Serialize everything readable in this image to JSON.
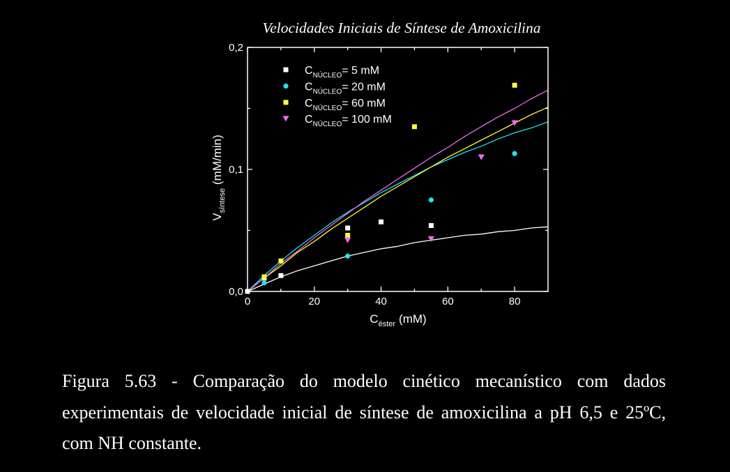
{
  "page": {
    "background_color": "#000000",
    "text_color": "#ffffff"
  },
  "caption": {
    "lines": [
      "Figura 5.63 - Comparação do modelo cinético mecanístico com dados",
      "experimentais de velocidade inicial de síntese de amoxicilina a pH 6,5 e 25ºC,",
      "com NH constante."
    ]
  },
  "chart_data": {
    "type": "scatter",
    "title": "Velocidades Iniciais de Síntese de Amoxicilina",
    "xlabel": {
      "symbol": "C",
      "sub": "éster",
      "unit": "(mM)"
    },
    "ylabel": {
      "symbol": "V",
      "sub": "síntese",
      "unit": "(mM/min)"
    },
    "xlim": [
      0,
      90
    ],
    "ylim": [
      0,
      0.2
    ],
    "xticks": [
      0,
      20,
      40,
      60,
      80
    ],
    "xtick_labels": [
      "0",
      "20",
      "40",
      "60",
      "80"
    ],
    "yticks": [
      0,
      0.1,
      0.2
    ],
    "ytick_labels": [
      "0,0",
      "0,1",
      "0,2"
    ],
    "grid": false,
    "legend_position": "top-left",
    "axes_color": "#ffffff",
    "curve_x": [
      0,
      5,
      10,
      15,
      20,
      25,
      30,
      35,
      40,
      45,
      50,
      55,
      60,
      65,
      70,
      75,
      80,
      85,
      90
    ],
    "series": [
      {
        "legend": {
          "symbol": "C",
          "sub": "NÚCLEO",
          "text": "= 5 mM"
        },
        "marker": "square",
        "color": "#ffffff",
        "x": [
          0,
          5,
          10,
          30,
          40,
          55
        ],
        "y": [
          0,
          0.011,
          0.013,
          0.052,
          0.057,
          0.054
        ],
        "curve_y": [
          0,
          0.006,
          0.012,
          0.017,
          0.021,
          0.025,
          0.029,
          0.032,
          0.035,
          0.037,
          0.04,
          0.042,
          0.044,
          0.046,
          0.047,
          0.049,
          0.05,
          0.052,
          0.053
        ]
      },
      {
        "legend": {
          "symbol": "C",
          "sub": "NÚCLEO",
          "text": "= 20 mM"
        },
        "marker": "circle",
        "color": "#1ee4f2",
        "x": [
          5,
          30,
          55,
          80
        ],
        "y": [
          0.007,
          0.029,
          0.075,
          0.113
        ],
        "curve_y": [
          0,
          0.013,
          0.025,
          0.036,
          0.046,
          0.056,
          0.065,
          0.073,
          0.081,
          0.088,
          0.095,
          0.102,
          0.108,
          0.114,
          0.119,
          0.125,
          0.13,
          0.134,
          0.139
        ]
      },
      {
        "legend": {
          "symbol": "C",
          "sub": "NÚCLEO",
          "text": "= 60 mM"
        },
        "marker": "square",
        "color": "#ffff33",
        "x": [
          5,
          10,
          30,
          50,
          80
        ],
        "y": [
          0.012,
          0.025,
          0.046,
          0.135,
          0.169
        ],
        "curve_y": [
          0,
          0.011,
          0.021,
          0.032,
          0.041,
          0.051,
          0.06,
          0.069,
          0.078,
          0.086,
          0.094,
          0.102,
          0.11,
          0.117,
          0.124,
          0.131,
          0.138,
          0.145,
          0.151
        ]
      },
      {
        "legend": {
          "symbol": "C",
          "sub": "NÚCLEO",
          "text": "= 100 mM"
        },
        "marker": "triangle-down",
        "color": "#f06cf0",
        "x": [
          30,
          55,
          70,
          80
        ],
        "y": [
          0.042,
          0.043,
          0.11,
          0.138
        ],
        "curve_y": [
          0,
          0.011,
          0.023,
          0.033,
          0.044,
          0.054,
          0.064,
          0.074,
          0.083,
          0.092,
          0.101,
          0.11,
          0.118,
          0.127,
          0.135,
          0.143,
          0.15,
          0.158,
          0.165
        ]
      }
    ]
  }
}
